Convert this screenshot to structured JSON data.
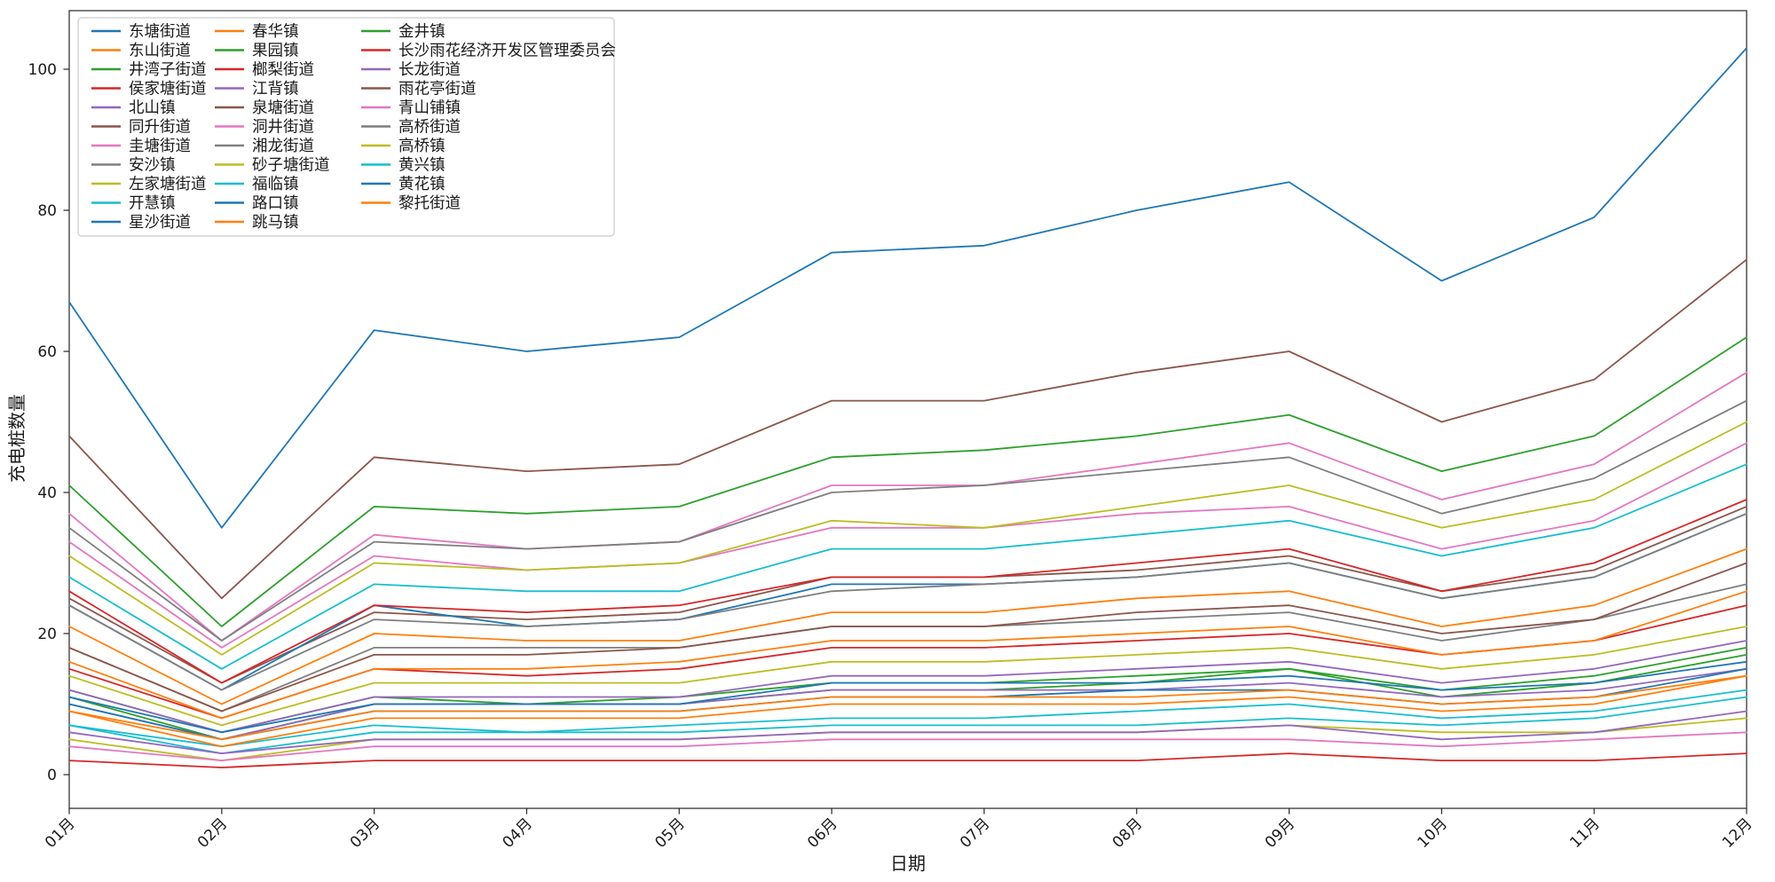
{
  "chart_data": {
    "type": "line",
    "title": "",
    "xlabel": "日期",
    "ylabel": "充电桩数量",
    "x": [
      "01月",
      "02月",
      "03月",
      "04月",
      "05月",
      "06月",
      "07月",
      "08月",
      "09月",
      "10月",
      "11月",
      "12月"
    ],
    "yticks": [
      0,
      20,
      40,
      60,
      80,
      100
    ],
    "ylim": [
      -5,
      108
    ],
    "grid": false,
    "legend_position": "upper-left",
    "legend_columns": 3,
    "legend_rows_per_column": 11,
    "axis_color": "#262626",
    "series": [
      {
        "name": "东塘街道",
        "color": "#1f77b4",
        "values": [
          67,
          35,
          63,
          60,
          62,
          74,
          75,
          80,
          84,
          70,
          79,
          103
        ]
      },
      {
        "name": "东山街道",
        "color": "#ff7f0e",
        "values": [
          21,
          10,
          20,
          19,
          19,
          23,
          23,
          25,
          26,
          21,
          24,
          32
        ]
      },
      {
        "name": "井湾子街道",
        "color": "#2ca02c",
        "values": [
          12,
          6,
          11,
          10,
          11,
          13,
          13,
          14,
          15,
          12,
          14,
          18
        ]
      },
      {
        "name": "侯家塘街道",
        "color": "#d62728",
        "values": [
          15,
          8,
          15,
          14,
          15,
          18,
          18,
          19,
          20,
          17,
          19,
          24
        ]
      },
      {
        "name": "北山镇",
        "color": "#9467bd",
        "values": [
          12,
          6,
          11,
          11,
          11,
          14,
          14,
          15,
          16,
          13,
          15,
          19
        ]
      },
      {
        "name": "同升街道",
        "color": "#8c564b",
        "values": [
          25,
          13,
          23,
          22,
          23,
          28,
          28,
          29,
          31,
          26,
          29,
          38
        ]
      },
      {
        "name": "圭塘街道",
        "color": "#e377c2",
        "values": [
          33,
          18,
          31,
          29,
          30,
          35,
          35,
          37,
          38,
          32,
          36,
          47
        ]
      },
      {
        "name": "安沙镇",
        "color": "#7f7f7f",
        "values": [
          18,
          9,
          18,
          18,
          18,
          21,
          21,
          22,
          23,
          19,
          22,
          27
        ]
      },
      {
        "name": "左家塘街道",
        "color": "#bcbd22",
        "values": [
          5,
          2,
          5,
          5,
          5,
          6,
          6,
          6,
          7,
          6,
          6,
          8
        ]
      },
      {
        "name": "开慧镇",
        "color": "#17becf",
        "values": [
          7,
          3,
          6,
          6,
          6,
          7,
          7,
          7,
          8,
          7,
          8,
          11
        ]
      },
      {
        "name": "星沙街道",
        "color": "#1f77b4",
        "values": [
          24,
          12,
          24,
          21,
          22,
          27,
          27,
          28,
          30,
          25,
          28,
          37
        ]
      },
      {
        "name": "春华镇",
        "color": "#ff7f0e",
        "values": [
          16,
          8,
          15,
          15,
          16,
          19,
          19,
          20,
          21,
          17,
          19,
          26
        ]
      },
      {
        "name": "果园镇",
        "color": "#2ca02c",
        "values": [
          11,
          5,
          10,
          10,
          10,
          12,
          12,
          13,
          15,
          11,
          13,
          17
        ]
      },
      {
        "name": "榔梨街道",
        "color": "#d62728",
        "values": [
          26,
          13,
          24,
          23,
          24,
          28,
          28,
          30,
          32,
          26,
          30,
          39
        ]
      },
      {
        "name": "江背镇",
        "color": "#9467bd",
        "values": [
          10,
          5,
          10,
          10,
          10,
          12,
          12,
          12,
          13,
          11,
          12,
          15
        ]
      },
      {
        "name": "泉塘街道",
        "color": "#8c564b",
        "values": [
          18,
          9,
          17,
          17,
          18,
          21,
          21,
          23,
          24,
          20,
          22,
          30
        ]
      },
      {
        "name": "洞井街道",
        "color": "#e377c2",
        "values": [
          4,
          2,
          4,
          4,
          4,
          5,
          5,
          5,
          5,
          4,
          5,
          6
        ]
      },
      {
        "name": "湘龙街道",
        "color": "#7f7f7f",
        "values": [
          24,
          12,
          22,
          21,
          22,
          26,
          27,
          28,
          30,
          25,
          28,
          37
        ]
      },
      {
        "name": "砂子塘街道",
        "color": "#bcbd22",
        "values": [
          14,
          7,
          13,
          13,
          13,
          16,
          16,
          17,
          18,
          15,
          17,
          21
        ]
      },
      {
        "name": "福临镇",
        "color": "#17becf",
        "values": [
          7,
          4,
          7,
          6,
          7,
          8,
          8,
          9,
          10,
          8,
          9,
          12
        ]
      },
      {
        "name": "路口镇",
        "color": "#1f77b4",
        "values": [
          10,
          5,
          9,
          9,
          9,
          11,
          11,
          12,
          12,
          10,
          11,
          15
        ]
      },
      {
        "name": "跳马镇",
        "color": "#ff7f0e",
        "values": [
          9,
          5,
          9,
          9,
          9,
          11,
          11,
          11,
          12,
          10,
          11,
          14
        ]
      },
      {
        "name": "金井镇",
        "color": "#2ca02c",
        "values": [
          41,
          21,
          38,
          37,
          38,
          45,
          46,
          48,
          51,
          43,
          48,
          62
        ]
      },
      {
        "name": "长沙雨花经济开发区管理委员会",
        "color": "#d62728",
        "values": [
          2,
          1,
          2,
          2,
          2,
          2,
          2,
          2,
          3,
          2,
          2,
          3
        ]
      },
      {
        "name": "长龙街道",
        "color": "#9467bd",
        "values": [
          6,
          3,
          5,
          5,
          5,
          6,
          6,
          6,
          7,
          5,
          6,
          9
        ]
      },
      {
        "name": "雨花亭街道",
        "color": "#8c564b",
        "values": [
          48,
          25,
          45,
          43,
          44,
          53,
          53,
          57,
          60,
          50,
          56,
          73
        ]
      },
      {
        "name": "青山铺镇",
        "color": "#e377c2",
        "values": [
          37,
          19,
          34,
          32,
          33,
          41,
          41,
          44,
          47,
          39,
          44,
          57
        ]
      },
      {
        "name": "高桥街道",
        "color": "#7f7f7f",
        "values": [
          35,
          19,
          33,
          32,
          33,
          40,
          41,
          43,
          45,
          37,
          42,
          53
        ]
      },
      {
        "name": "高桥镇",
        "color": "#bcbd22",
        "values": [
          31,
          17,
          30,
          29,
          30,
          36,
          35,
          38,
          41,
          35,
          39,
          50
        ]
      },
      {
        "name": "黄兴镇",
        "color": "#17becf",
        "values": [
          28,
          15,
          27,
          26,
          26,
          32,
          32,
          34,
          36,
          31,
          35,
          44
        ]
      },
      {
        "name": "黄花镇",
        "color": "#1f77b4",
        "values": [
          11,
          6,
          10,
          10,
          10,
          13,
          13,
          13,
          14,
          12,
          13,
          16
        ]
      },
      {
        "name": "黎托街道",
        "color": "#ff7f0e",
        "values": [
          9,
          4,
          8,
          8,
          8,
          10,
          10,
          10,
          11,
          9,
          10,
          14
        ]
      }
    ]
  }
}
